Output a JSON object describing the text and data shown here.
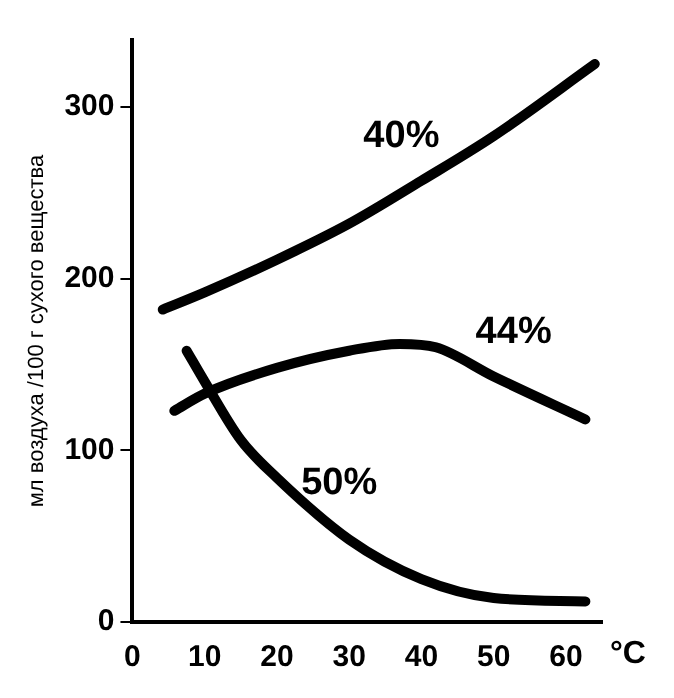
{
  "chart_data": {
    "type": "line",
    "xlabel": "°C",
    "ylabel": "мл воздуха /100 г сухого вещества",
    "xlim": [
      0,
      65
    ],
    "xticks": [
      0,
      10,
      20,
      30,
      40,
      50,
      60
    ],
    "ylim": [
      0,
      339
    ],
    "yticks": [
      0,
      100,
      200,
      300
    ],
    "grid": false,
    "legend": false,
    "marker": "none",
    "line_style": "solid",
    "series": [
      {
        "name": "40%",
        "color": "#000000",
        "x": [
          4.2,
          10,
          20,
          30,
          40,
          50,
          64
        ],
        "values": [
          182,
          192,
          211,
          232,
          257,
          283,
          325
        ]
      },
      {
        "name": "44%",
        "color": "#000000",
        "x": [
          5.8,
          10,
          20,
          30,
          37,
          42,
          50,
          62.7
        ],
        "values": [
          123,
          133,
          148,
          158,
          162,
          160,
          143,
          118
        ]
      },
      {
        "name": "50%",
        "color": "#000000",
        "x": [
          7.5,
          10,
          15,
          20,
          30,
          40,
          50,
          62.7
        ],
        "values": [
          158,
          140,
          106,
          84,
          48,
          25,
          14,
          12
        ]
      }
    ]
  }
}
